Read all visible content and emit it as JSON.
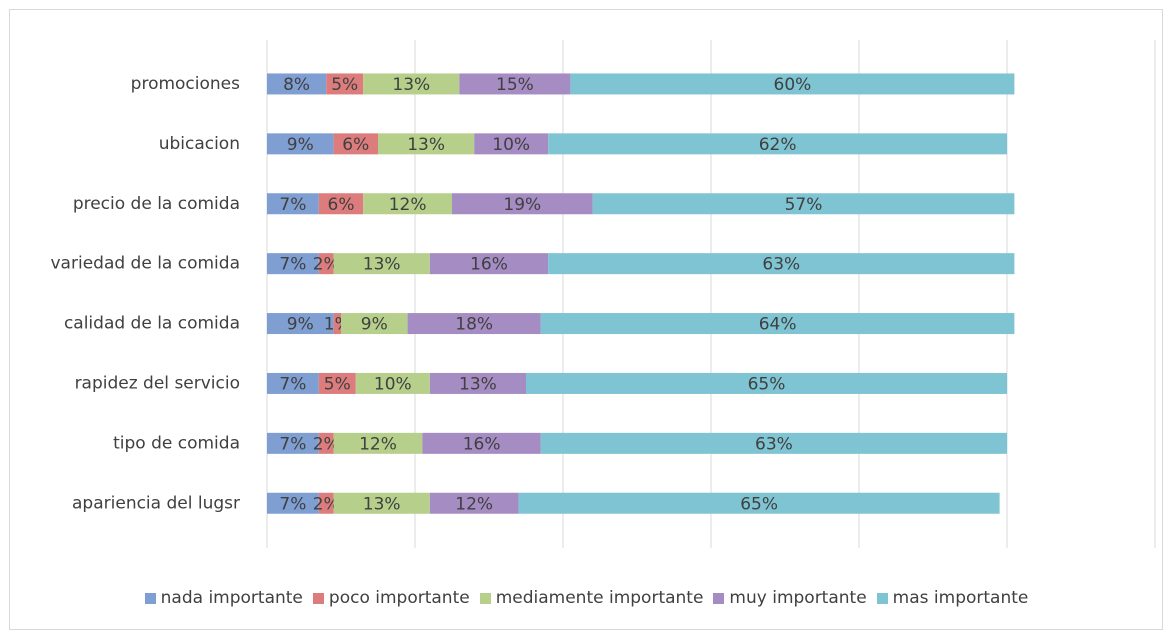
{
  "chart_data": {
    "type": "stacked-bar-horizontal",
    "categories": [
      "promociones",
      "ubicacion",
      "precio de la comida",
      "variedad de la comida",
      "calidad de la comida",
      "rapidez del servicio",
      "tipo de comida",
      "apariencia del lugsr"
    ],
    "series": [
      {
        "name": "nada importante",
        "color": "#7f9fd3",
        "values": [
          8,
          9,
          7,
          7,
          9,
          7,
          7,
          7
        ],
        "value_labels": [
          "8%",
          "9%",
          "7%",
          "7%",
          "9%",
          "7%",
          "7%",
          "7%"
        ]
      },
      {
        "name": "poco importante",
        "color": "#dd7c7c",
        "values": [
          5,
          6,
          6,
          2,
          1,
          5,
          2,
          2
        ],
        "value_labels": [
          "5%",
          "6%",
          "6%",
          "2%",
          "1%",
          "5%",
          "2%",
          "2%"
        ]
      },
      {
        "name": "mediamente importante",
        "color": "#b6d08c",
        "values": [
          13,
          13,
          12,
          13,
          9,
          10,
          12,
          13
        ],
        "value_labels": [
          "13%",
          "13%",
          "12%",
          "13%",
          "9%",
          "10%",
          "12%",
          "13%"
        ]
      },
      {
        "name": "muy importante",
        "color": "#a58cc3",
        "values": [
          15,
          10,
          19,
          16,
          18,
          13,
          16,
          12
        ],
        "value_labels": [
          "15%",
          "10%",
          "19%",
          "16%",
          "18%",
          "13%",
          "16%",
          "12%"
        ]
      },
      {
        "name": "mas importante",
        "color": "#7fc4d3",
        "values": [
          60,
          62,
          57,
          63,
          64,
          65,
          63,
          65
        ],
        "value_labels": [
          "60%",
          "62%",
          "57%",
          "63%",
          "64%",
          "65%",
          "63%",
          "65%"
        ]
      }
    ],
    "xlim": [
      0,
      120
    ],
    "xticks": [
      0,
      20,
      40,
      60,
      80,
      100,
      120
    ],
    "grid": true,
    "legend": "bottom"
  }
}
